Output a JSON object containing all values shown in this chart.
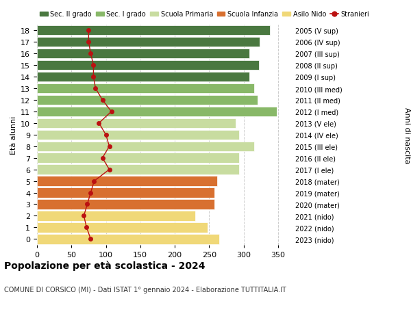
{
  "ages": [
    0,
    1,
    2,
    3,
    4,
    5,
    6,
    7,
    8,
    9,
    10,
    11,
    12,
    13,
    14,
    15,
    16,
    17,
    18
  ],
  "years_labels": [
    "2023 (nido)",
    "2022 (nido)",
    "2021 (nido)",
    "2020 (mater)",
    "2019 (mater)",
    "2018 (mater)",
    "2017 (I ele)",
    "2016 (II ele)",
    "2015 (III ele)",
    "2014 (IV ele)",
    "2013 (V ele)",
    "2012 (I med)",
    "2011 (II med)",
    "2010 (III med)",
    "2009 (I sup)",
    "2008 (II sup)",
    "2007 (III sup)",
    "2006 (IV sup)",
    "2005 (V sup)"
  ],
  "bar_values": [
    265,
    248,
    230,
    258,
    258,
    262,
    293,
    293,
    315,
    293,
    288,
    348,
    320,
    315,
    308,
    322,
    308,
    323,
    338
  ],
  "bar_colors": [
    "#f0d878",
    "#f0d878",
    "#f0d878",
    "#d87030",
    "#d87030",
    "#d87030",
    "#c8dca0",
    "#c8dca0",
    "#c8dca0",
    "#c8dca0",
    "#c8dca0",
    "#88b868",
    "#88b868",
    "#88b868",
    "#4a7840",
    "#4a7840",
    "#4a7840",
    "#4a7840",
    "#4a7840"
  ],
  "stranieri_values": [
    78,
    72,
    68,
    73,
    78,
    83,
    105,
    95,
    105,
    100,
    90,
    108,
    95,
    85,
    82,
    82,
    78,
    75,
    75
  ],
  "legend_labels": [
    "Sec. II grado",
    "Sec. I grado",
    "Scuola Primaria",
    "Scuola Infanzia",
    "Asilo Nido",
    "Stranieri"
  ],
  "legend_colors": [
    "#4a7840",
    "#88b868",
    "#c8dca0",
    "#d87030",
    "#f0d878",
    "#bb1111"
  ],
  "title": "Popolazione per età scolastica - 2024",
  "subtitle": "COMUNE DI CORSICO (MI) - Dati ISTAT 1° gennaio 2024 - Elaborazione TUTTITALIA.IT",
  "ylabel_left": "Età alunni",
  "ylabel_right": "Anni di nascita",
  "xlim": [
    0,
    370
  ],
  "xticks": [
    0,
    50,
    100,
    150,
    200,
    250,
    300,
    350
  ],
  "background_color": "#ffffff",
  "grid_color": "#cccccc",
  "fig_width": 6.0,
  "fig_height": 4.6,
  "dpi": 100
}
